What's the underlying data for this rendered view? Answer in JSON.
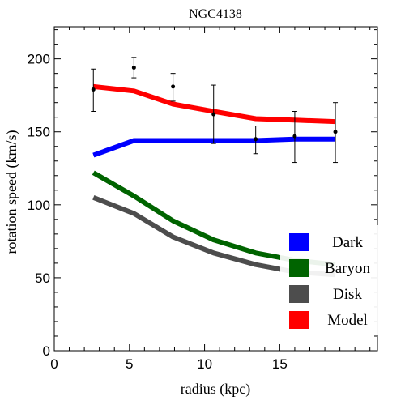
{
  "chart_data": {
    "type": "line",
    "title": "NGC4138",
    "xlabel": "radius (kpc)",
    "ylabel": "rotation speed (km/s)",
    "xlim": [
      0,
      21.5
    ],
    "ylim": [
      0,
      222
    ],
    "x_ticks": [
      0,
      5,
      10,
      15
    ],
    "y_ticks": [
      0,
      50,
      100,
      150,
      200
    ],
    "x_tick_labels": [
      "0",
      "5",
      "10",
      "15"
    ],
    "y_tick_labels": [
      "0",
      "50",
      "100",
      "150",
      "200"
    ],
    "grid": false,
    "legend_position": "bottom-right",
    "x": [
      2.6,
      5.3,
      7.9,
      10.6,
      13.4,
      16.0,
      18.7
    ],
    "series": [
      {
        "name": "Dark",
        "color": "#0000ff",
        "values": [
          134,
          144,
          144,
          144,
          144,
          145,
          145
        ]
      },
      {
        "name": "Baryon",
        "color": "#006400",
        "values": [
          122,
          106,
          89,
          76,
          67,
          62,
          59
        ]
      },
      {
        "name": "Disk",
        "color": "#4d4d4d",
        "values": [
          105,
          94,
          78,
          67,
          59,
          54,
          52
        ]
      },
      {
        "name": "Model",
        "color": "#ff0000",
        "values": [
          181,
          178,
          169,
          164,
          159,
          158,
          157
        ]
      }
    ],
    "observed": {
      "x": [
        2.6,
        5.3,
        7.9,
        10.6,
        13.4,
        16.0,
        18.7
      ],
      "y": [
        179,
        194,
        181,
        162,
        145,
        147,
        150
      ],
      "err_low": [
        164,
        187,
        171,
        142,
        135,
        129,
        129
      ],
      "err_high": [
        193,
        201,
        190,
        182,
        154,
        164,
        170
      ]
    }
  }
}
